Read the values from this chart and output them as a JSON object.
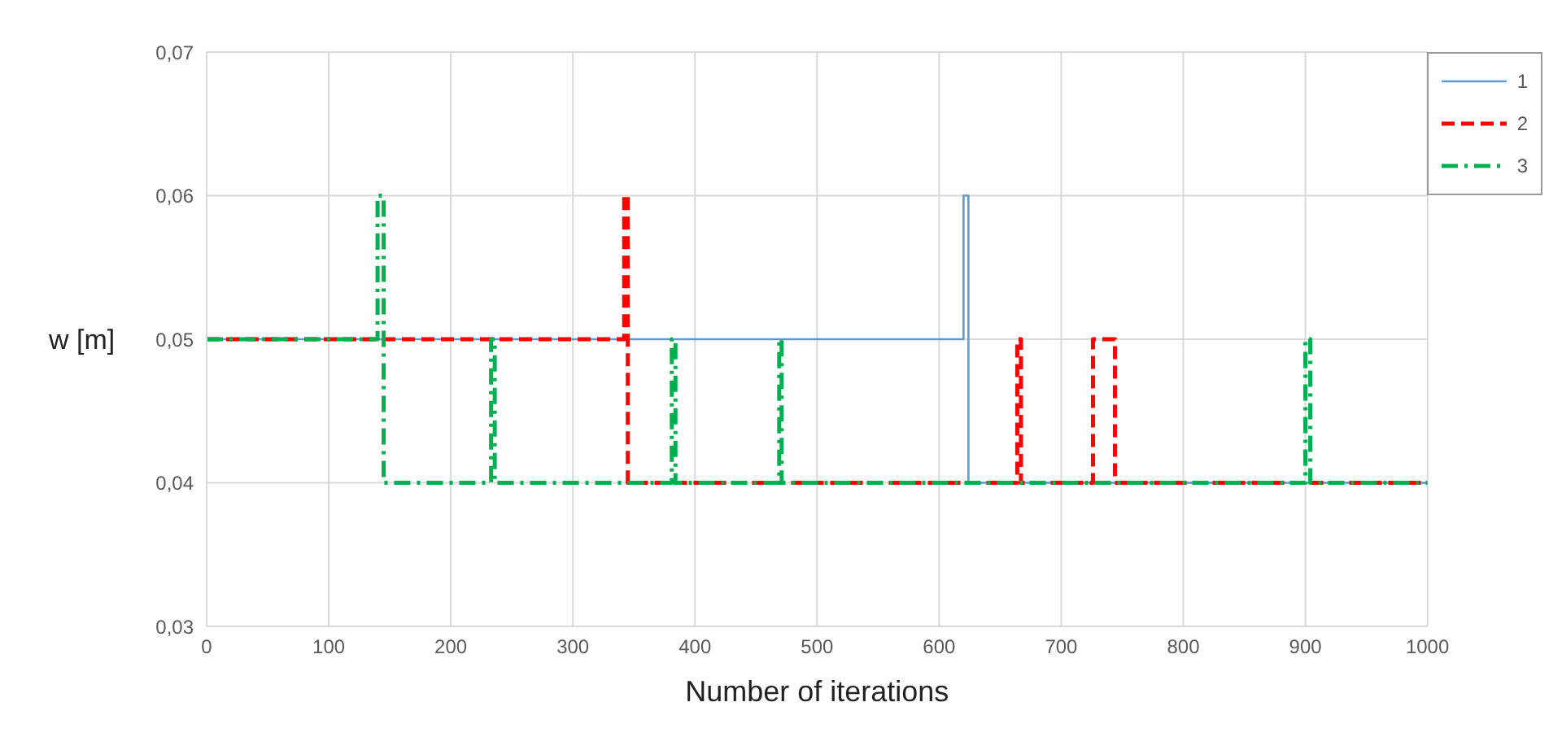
{
  "chart_data": {
    "type": "step",
    "xlabel": "Number of iterations",
    "ylabel": "w [m]",
    "xlim": [
      0,
      1000
    ],
    "xticks": [
      0,
      100,
      200,
      300,
      400,
      500,
      600,
      700,
      800,
      900,
      1000
    ],
    "ylim": [
      0.03,
      0.07
    ],
    "yticks": [
      {
        "value": 0.03,
        "label": "0,03"
      },
      {
        "value": 0.04,
        "label": "0,04"
      },
      {
        "value": 0.05,
        "label": "0,05"
      },
      {
        "value": 0.06,
        "label": "0,06"
      },
      {
        "value": 0.07,
        "label": "0,07"
      }
    ],
    "grid": true,
    "legend": "top right",
    "marker": "none",
    "series": [
      {
        "name": "1",
        "color": "#5b9bd5",
        "line_style": "solid",
        "x": [
          0,
          620,
          624,
          1000
        ],
        "values": [
          0.05,
          0.06,
          0.04,
          0.04
        ]
      },
      {
        "name": "2",
        "color": "#ff0000",
        "line_style": "dashed",
        "x": [
          0,
          342,
          345,
          664,
          667,
          726,
          744,
          1000
        ],
        "values": [
          0.05,
          0.06,
          0.04,
          0.05,
          0.04,
          0.05,
          0.04,
          0.04
        ]
      },
      {
        "name": "3",
        "color": "#00b050",
        "line_style": "dashdot",
        "x": [
          0,
          140,
          145,
          233,
          236,
          381,
          384,
          469,
          471,
          900,
          904,
          1000
        ],
        "values": [
          0.05,
          0.06,
          0.04,
          0.05,
          0.04,
          0.05,
          0.04,
          0.05,
          0.04,
          0.05,
          0.04,
          0.04
        ]
      }
    ]
  }
}
